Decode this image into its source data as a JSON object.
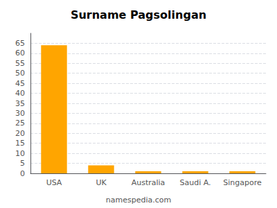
{
  "chart_data": {
    "type": "bar",
    "title": "Surname Pagsolingan",
    "categories": [
      "USA",
      "UK",
      "Australia",
      "Saudi A.",
      "Singapore"
    ],
    "values": [
      64,
      4,
      1,
      1,
      1
    ],
    "color": "#FFA500",
    "ylim": [
      0,
      70
    ],
    "yticks": [
      0,
      5,
      10,
      15,
      20,
      25,
      30,
      35,
      40,
      45,
      50,
      55,
      60,
      65
    ],
    "grid": true,
    "annotations": [
      "namespedia.com"
    ]
  }
}
